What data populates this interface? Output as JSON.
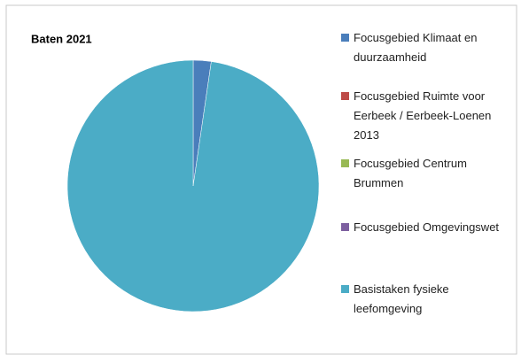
{
  "chart_data": {
    "type": "pie",
    "title": "Baten 2021",
    "categories": [
      "Focusgebied Klimaat en duurzaamheid",
      "Focusgebied Ruimte voor Eerbeek / Eerbeek-Loenen 2013",
      "Focusgebied Centrum Brummen",
      "Focusgebied Omgevingswet",
      "Basistaken fysieke leefomgeving"
    ],
    "values": [
      2.3,
      0,
      0,
      0,
      97.7
    ],
    "colors": [
      "#4a7ebb",
      "#be4b48",
      "#98b954",
      "#7d60a0",
      "#4bacc6"
    ],
    "legend": "right"
  }
}
